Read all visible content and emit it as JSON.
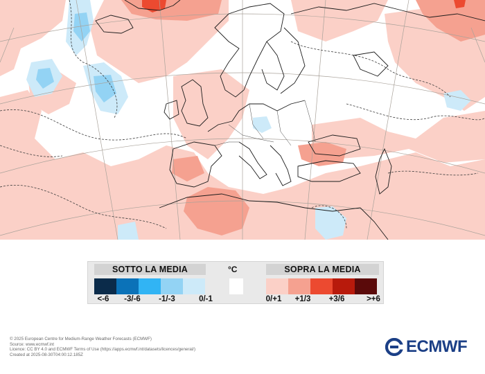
{
  "legend": {
    "below_title": "SOTTO LA MEDIA",
    "above_title": "SOPRA LA MEDIA",
    "unit": "°C",
    "below": [
      {
        "label": "<-6",
        "color": "#0b2b4a"
      },
      {
        "label": "-3/-6",
        "color": "#0b72b8"
      },
      {
        "label": "-1/-3",
        "color": "#31b4f4"
      },
      {
        "label": "",
        "color": "#93d3f4"
      },
      {
        "label": "0/-1",
        "color": "#cdeaf9"
      }
    ],
    "neutral": {
      "color": "#ffffff"
    },
    "above": [
      {
        "label": "0/+1",
        "color": "#fbd0c7"
      },
      {
        "label": "+1/3",
        "color": "#f5a190"
      },
      {
        "label": "+3/6",
        "color": "#ec4a30"
      },
      {
        "label": "",
        "color": "#b81a0c"
      },
      {
        "label": ">+6",
        "color": "#5a0a0a"
      }
    ]
  },
  "credits": [
    "© 2025 European Centre for Medium-Range Weather Forecasts (ECMWF)",
    "Source: www.ecmwf.int",
    "Licence: CC BY 4.0 and ECMWF Terms of Use (https://apps.ecmwf.int/datasets/licences/general/)",
    "Created at 2025-08-30T04:00:12.185Z"
  ],
  "logo": {
    "text": "ECMWF",
    "color": "#1b3f86"
  }
}
